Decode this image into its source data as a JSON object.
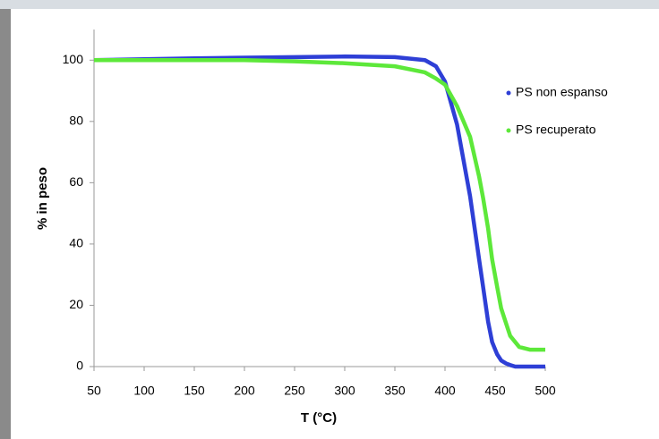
{
  "chart_data": {
    "type": "line",
    "x_label": "T (°C)",
    "y_label": "% in peso",
    "x": [
      50,
      100,
      150,
      200,
      250,
      300,
      350,
      380,
      391,
      400,
      412,
      425,
      434,
      438,
      443,
      447,
      452,
      456,
      461,
      465,
      470,
      474,
      485,
      500
    ],
    "series": [
      {
        "name": "PS non espanso",
        "color": "#2e3fd6",
        "values": [
          100,
          100.3,
          100.6,
          100.8,
          101,
          101.2,
          101,
          100,
          98,
          93,
          79,
          55.6,
          35,
          26,
          14.6,
          8,
          4,
          2,
          1,
          0.5,
          0,
          0,
          0,
          0
        ]
      },
      {
        "name": "PS recuperato",
        "color": "#5de83a",
        "values": [
          100,
          100,
          100,
          100,
          99.6,
          99,
          98,
          96,
          94,
          92,
          85,
          75,
          62,
          55,
          45,
          35,
          26,
          19,
          14,
          10,
          8,
          6.4,
          5.5,
          5.5
        ]
      }
    ],
    "xlim": [
      50,
      500
    ],
    "xticks": [
      50,
      100,
      150,
      200,
      250,
      300,
      350,
      400,
      450,
      500
    ],
    "ylim": [
      0,
      110
    ],
    "yticks": [
      0,
      20,
      40,
      60,
      80,
      100
    ],
    "legend": "right"
  }
}
